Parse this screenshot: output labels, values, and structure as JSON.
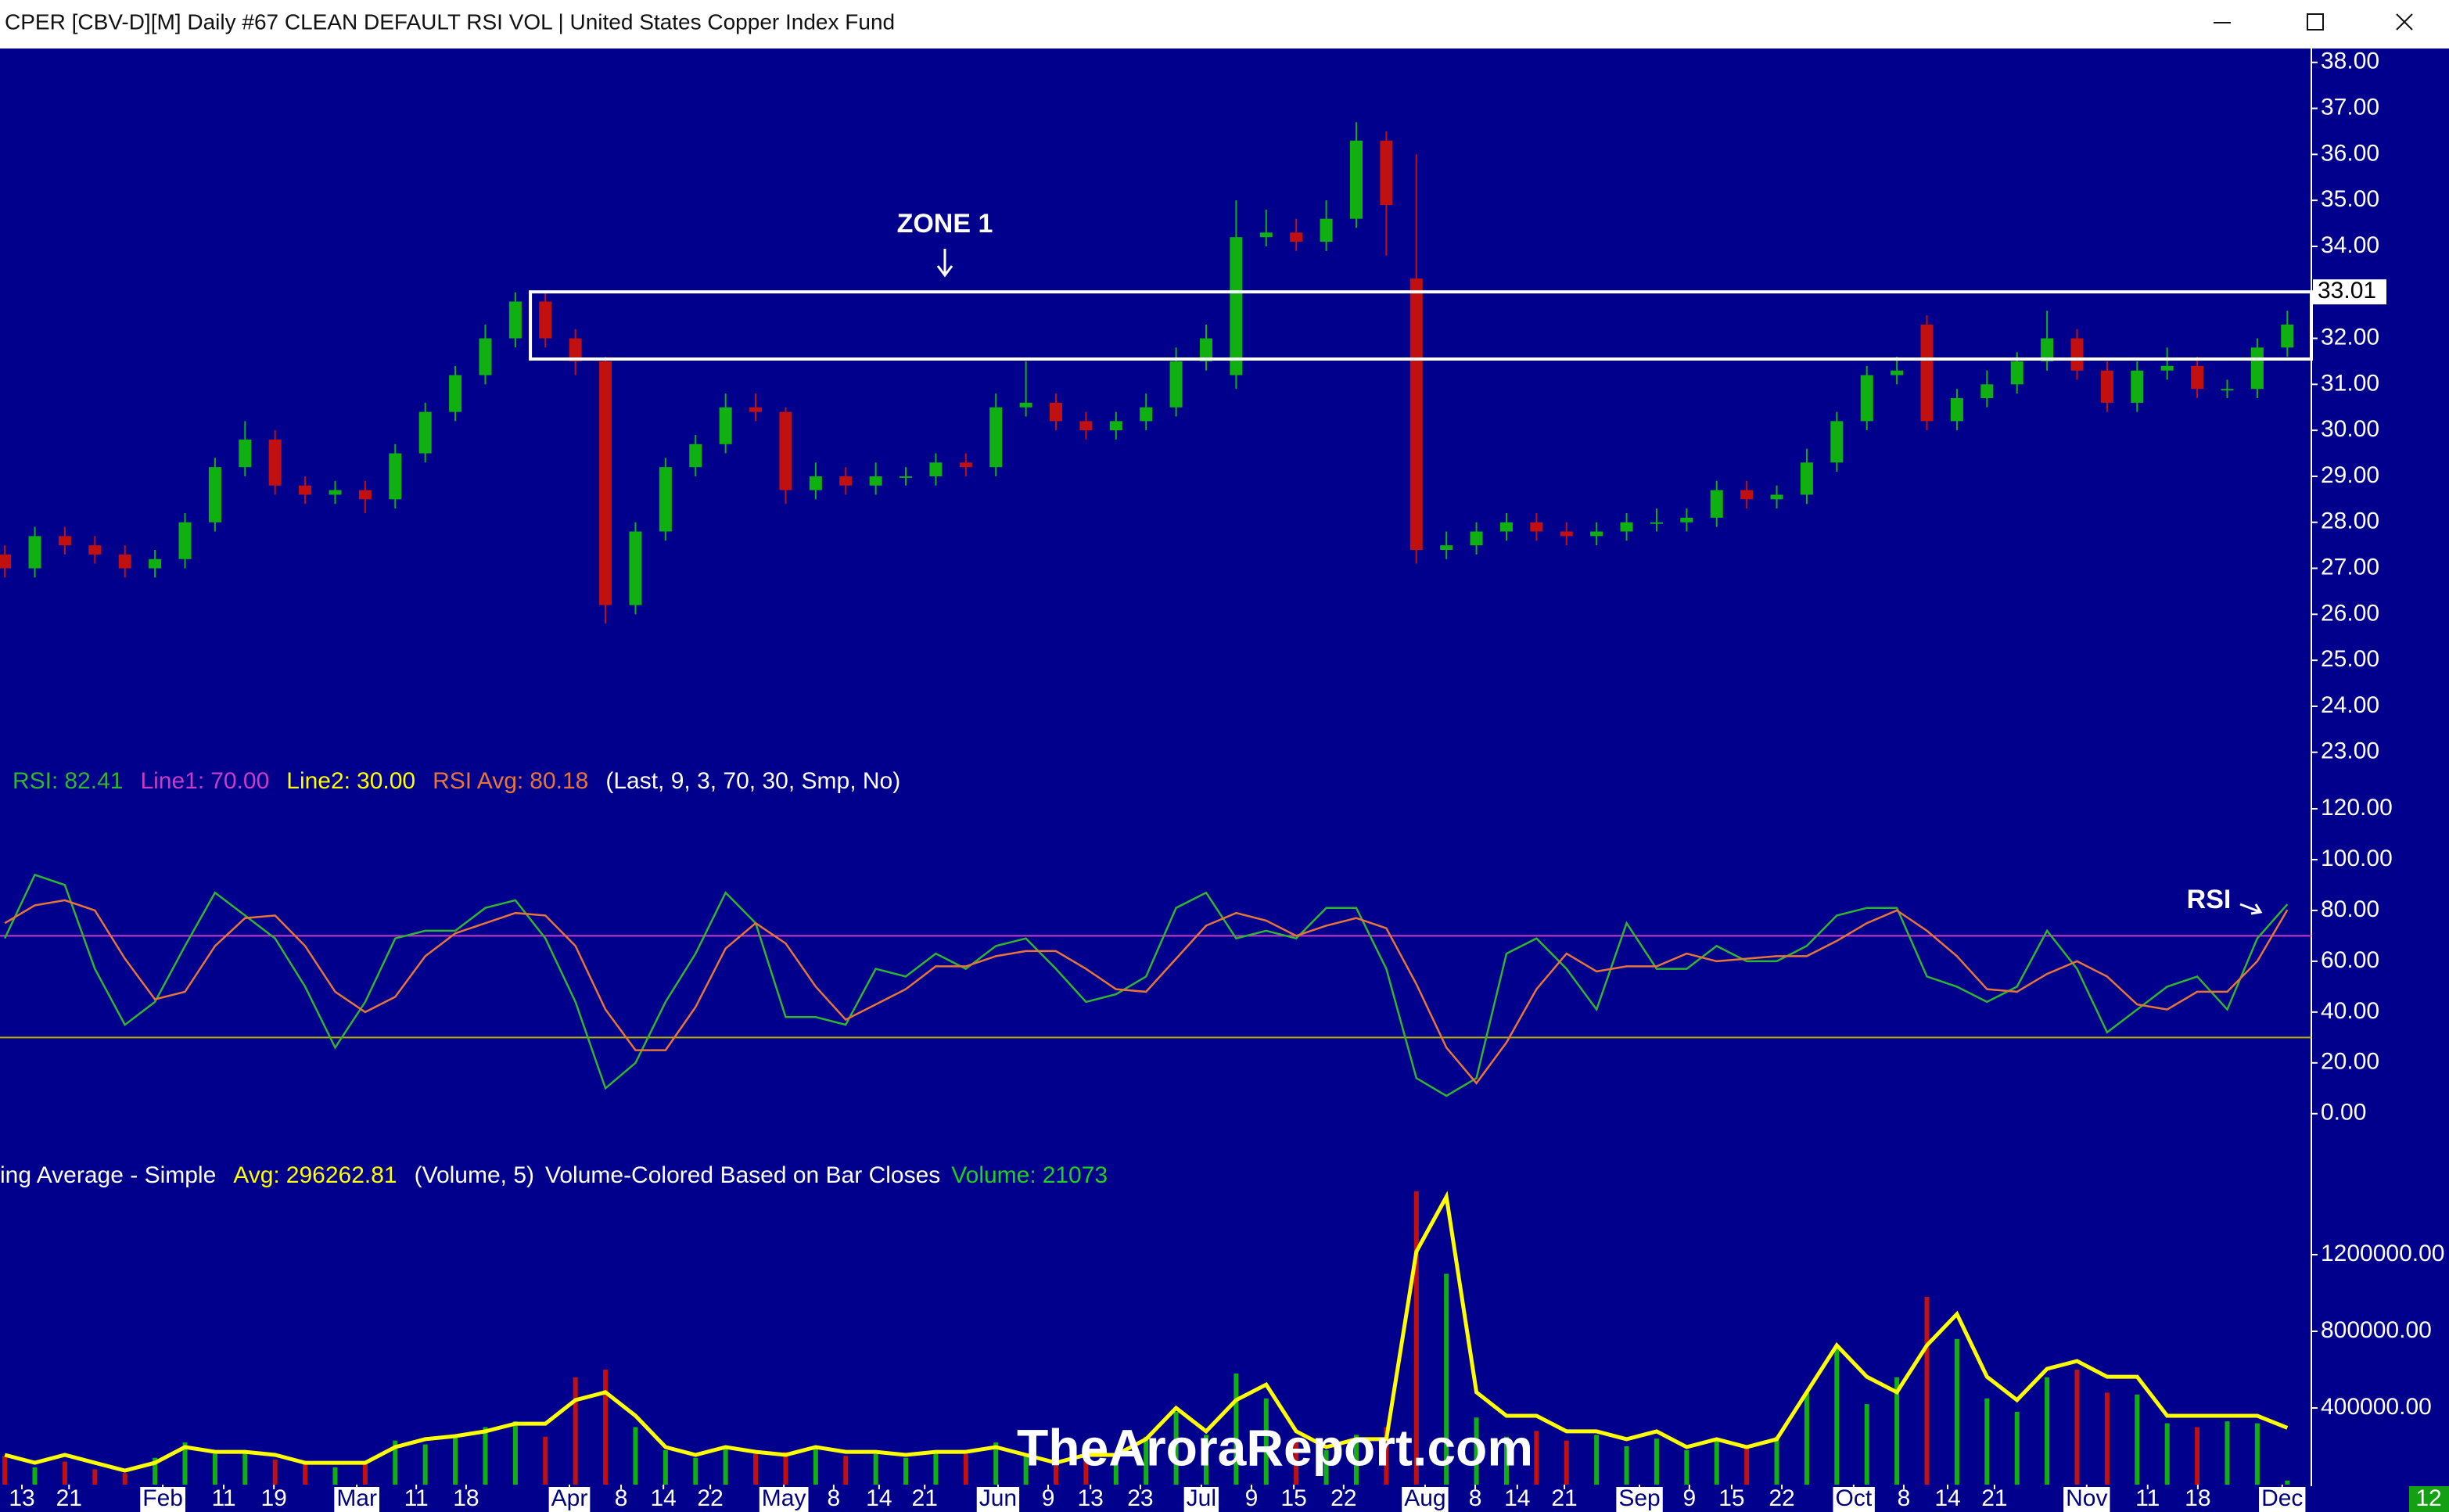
{
  "chart_data": [
    {
      "type": "candlestick",
      "title": "CPER [CBV-D][M]  Daily #67 CLEAN DEFAULT RSI VOL | United States Copper Index Fund",
      "up_color": "#10b010",
      "down_color": "#c01010",
      "open": [
        27.3,
        27.0,
        27.7,
        27.5,
        27.3,
        27.0,
        27.2,
        28.0,
        29.2,
        29.8,
        28.8,
        28.6,
        28.7,
        28.5,
        29.5,
        30.4,
        31.2,
        32.0,
        32.8,
        32.0,
        31.5,
        26.2,
        27.8,
        29.2,
        29.7,
        30.5,
        30.4,
        28.7,
        29.0,
        28.8,
        29.0,
        29.0,
        29.3,
        29.2,
        30.5,
        30.6,
        30.2,
        30.0,
        30.2,
        30.5,
        31.5,
        31.2,
        34.2,
        34.3,
        34.1,
        34.6,
        36.3,
        33.3,
        27.4,
        27.5,
        27.8,
        28.0,
        27.8,
        27.7,
        27.8,
        28.0,
        28.0,
        28.1,
        28.7,
        28.5,
        28.6,
        29.3,
        30.2,
        31.2,
        32.3,
        30.2,
        30.7,
        31.0,
        31.5,
        32.0,
        31.3,
        30.6,
        31.3,
        31.4,
        30.9,
        30.9,
        31.8
      ],
      "high": [
        27.5,
        27.9,
        27.9,
        27.7,
        27.5,
        27.4,
        28.2,
        29.4,
        30.2,
        30.0,
        29.0,
        28.9,
        28.9,
        29.7,
        30.6,
        31.4,
        32.3,
        33.0,
        33.0,
        32.2,
        31.6,
        28.0,
        29.4,
        29.9,
        30.8,
        30.8,
        30.5,
        29.3,
        29.2,
        29.3,
        29.2,
        29.5,
        29.5,
        30.8,
        31.5,
        30.8,
        30.4,
        30.4,
        30.8,
        31.8,
        32.3,
        35.0,
        34.8,
        34.6,
        35.0,
        36.7,
        36.5,
        36.0,
        27.8,
        28.0,
        28.2,
        28.2,
        28.0,
        28.0,
        28.2,
        28.3,
        28.3,
        28.9,
        28.9,
        28.8,
        29.6,
        30.4,
        31.4,
        31.6,
        32.5,
        30.9,
        31.3,
        31.7,
        32.6,
        32.2,
        31.5,
        31.5,
        31.8,
        31.6,
        31.1,
        32.0,
        32.6
      ],
      "low": [
        26.8,
        26.8,
        27.3,
        27.1,
        26.8,
        26.8,
        27.0,
        27.8,
        29.0,
        28.6,
        28.4,
        28.4,
        28.2,
        28.3,
        29.3,
        30.2,
        31.0,
        31.8,
        31.8,
        31.2,
        25.8,
        26.0,
        27.6,
        29.0,
        29.5,
        30.2,
        28.4,
        28.5,
        28.6,
        28.6,
        28.8,
        28.8,
        29.0,
        29.0,
        30.3,
        30.0,
        29.8,
        29.8,
        30.0,
        30.3,
        31.3,
        30.9,
        34.0,
        33.9,
        33.9,
        34.4,
        33.8,
        27.1,
        27.2,
        27.3,
        27.6,
        27.6,
        27.5,
        27.5,
        27.6,
        27.8,
        27.8,
        27.9,
        28.3,
        28.3,
        28.4,
        29.1,
        30.0,
        31.0,
        30.0,
        30.0,
        30.5,
        30.8,
        31.3,
        31.1,
        30.4,
        30.4,
        31.1,
        30.7,
        30.7,
        30.7,
        31.6
      ],
      "close": [
        27.0,
        27.7,
        27.5,
        27.3,
        27.0,
        27.2,
        28.0,
        29.2,
        29.8,
        28.8,
        28.6,
        28.7,
        28.5,
        29.5,
        30.4,
        31.2,
        32.0,
        32.8,
        32.0,
        31.5,
        26.2,
        27.8,
        29.2,
        29.7,
        30.5,
        30.4,
        28.7,
        29.0,
        28.8,
        29.0,
        29.0,
        29.3,
        29.2,
        30.5,
        30.6,
        30.2,
        30.0,
        30.2,
        30.5,
        31.5,
        32.0,
        34.2,
        34.3,
        34.1,
        34.6,
        36.3,
        34.9,
        27.4,
        27.5,
        27.8,
        28.0,
        27.8,
        27.7,
        27.8,
        28.0,
        28.0,
        28.1,
        28.7,
        28.5,
        28.6,
        29.3,
        30.2,
        31.2,
        31.3,
        30.2,
        30.7,
        31.0,
        31.5,
        32.0,
        31.3,
        30.6,
        31.3,
        31.4,
        30.9,
        30.9,
        31.8,
        32.3
      ],
      "xlim": [
        -0.16,
        76.8
      ],
      "ylim": [
        22.4,
        38.2
      ],
      "yticks": [
        {
          "value": 23,
          "label": "23.00"
        },
        {
          "value": 24,
          "label": "24.00"
        },
        {
          "value": 25,
          "label": "25.00"
        },
        {
          "value": 26,
          "label": "26.00"
        },
        {
          "value": 27,
          "label": "27.00"
        },
        {
          "value": 28,
          "label": "28.00"
        },
        {
          "value": 29,
          "label": "29.00"
        },
        {
          "value": 30,
          "label": "30.00"
        },
        {
          "value": 31,
          "label": "31.00"
        },
        {
          "value": 32,
          "label": "32.00"
        },
        {
          "value": 33,
          "label": "33.00"
        },
        {
          "value": 34,
          "label": "34.00"
        },
        {
          "value": 35,
          "label": "35.00"
        },
        {
          "value": 36,
          "label": "36.00"
        },
        {
          "value": 37,
          "label": "37.00"
        },
        {
          "value": 38,
          "label": "38.00"
        }
      ],
      "zone": {
        "label": "ZONE 1",
        "top": 33.01,
        "bottom": 31.55,
        "x_start": 17.5
      }
    },
    {
      "type": "line",
      "series": [
        {
          "name": "RSI:",
          "color": "#2fb52f",
          "values": [
            69,
            94,
            90,
            57,
            35,
            44,
            66,
            87,
            78,
            69,
            50,
            26,
            44,
            69,
            72,
            72,
            81,
            84,
            69,
            44,
            10,
            20,
            44,
            63,
            87,
            75,
            38,
            38,
            35,
            57,
            54,
            63,
            57,
            66,
            69,
            57,
            44,
            47,
            54,
            81,
            87,
            69,
            72,
            69,
            81,
            81,
            57,
            14,
            7,
            14,
            63,
            69,
            57,
            41,
            75,
            57,
            57,
            66,
            60,
            60,
            66,
            78,
            81,
            81,
            54,
            50,
            44,
            50,
            72,
            57,
            32,
            41,
            50,
            54,
            41,
            69,
            82.41
          ]
        },
        {
          "name": "RSI Avg:",
          "color": "#e8743a",
          "values": [
            75,
            82,
            84,
            80,
            61,
            45,
            48,
            66,
            77,
            78,
            66,
            48,
            40,
            46,
            62,
            71,
            75,
            79,
            78,
            66,
            41,
            25,
            25,
            42,
            65,
            75,
            67,
            50,
            37,
            43,
            49,
            58,
            58,
            62,
            64,
            64,
            57,
            49,
            48,
            61,
            74,
            79,
            76,
            70,
            74,
            77,
            73,
            51,
            26,
            12,
            28,
            49,
            63,
            56,
            58,
            58,
            63,
            60,
            61,
            62,
            62,
            68,
            75,
            80,
            72,
            62,
            49,
            48,
            55,
            60,
            54,
            43,
            41,
            48,
            48,
            60,
            80.18
          ]
        }
      ],
      "hlines": [
        {
          "name": "Line1:",
          "color": "#c83cc8",
          "value": 70,
          "label": "70.00"
        },
        {
          "name": "Line2:",
          "color": "#b4b400",
          "value": 30,
          "label": "30.00"
        }
      ],
      "params": "(Last, 9, 3, 70, 30, Smp, No)",
      "annotation": "RSI",
      "ylim": [
        -17,
        124
      ],
      "yticks": [
        {
          "value": 0,
          "label": "0.00"
        },
        {
          "value": 20,
          "label": "20.00"
        },
        {
          "value": 40,
          "label": "40.00"
        },
        {
          "value": 60,
          "label": "60.00"
        },
        {
          "value": 80,
          "label": "80.00"
        },
        {
          "value": 100,
          "label": "100.00"
        },
        {
          "value": 120,
          "label": "120.00"
        }
      ]
    },
    {
      "type": "bar",
      "header": "ing Average - Simple",
      "series": [
        {
          "name": "Volume:",
          "color": "#20d020",
          "up_color": "#10b010",
          "down_color": "#c01010",
          "values": [
            150000,
            90000,
            120000,
            80000,
            60000,
            140000,
            220000,
            160000,
            180000,
            130000,
            110000,
            90000,
            120000,
            230000,
            210000,
            260000,
            300000,
            330000,
            250000,
            560000,
            600000,
            300000,
            180000,
            140000,
            200000,
            160000,
            170000,
            190000,
            150000,
            160000,
            140000,
            180000,
            160000,
            220000,
            150000,
            100000,
            130000,
            160000,
            250000,
            380000,
            260000,
            580000,
            450000,
            240000,
            180000,
            260000,
            300000,
            1530000,
            1100000,
            350000,
            250000,
            280000,
            230000,
            260000,
            200000,
            240000,
            180000,
            230000,
            190000,
            250000,
            480000,
            720000,
            420000,
            560000,
            980000,
            760000,
            450000,
            380000,
            560000,
            600000,
            480000,
            470000,
            320000,
            300000,
            330000,
            320000,
            21073
          ]
        }
      ],
      "average": {
        "name": "Avg:",
        "color": "#ffff00",
        "values": [
          155000,
          114000,
          155000,
          114000,
          73000,
          114000,
          196000,
          171000,
          171000,
          155000,
          114000,
          114000,
          114000,
          196000,
          237000,
          253000,
          278000,
          318000,
          318000,
          441000,
          482000,
          359000,
          196000,
          155000,
          196000,
          171000,
          155000,
          196000,
          171000,
          171000,
          155000,
          171000,
          171000,
          196000,
          155000,
          114000,
          155000,
          155000,
          237000,
          400000,
          278000,
          441000,
          522000,
          278000,
          196000,
          237000,
          237000,
          1216000,
          1502000,
          482000,
          359000,
          359000,
          278000,
          278000,
          237000,
          278000,
          196000,
          237000,
          196000,
          237000,
          482000,
          727000,
          563000,
          482000,
          727000,
          890000,
          563000,
          441000,
          604000,
          645000,
          563000,
          563000,
          359000,
          359000,
          359000,
          359000,
          296262.81
        ]
      },
      "params": "(Volume, 5)",
      "note": "Volume-Colored Based on Bar Closes",
      "ylim": [
        0,
        1706000
      ],
      "yticks": [
        {
          "value": 400000,
          "label": "400000.00"
        },
        {
          "value": 800000,
          "label": "800000.00"
        },
        {
          "value": 1200000,
          "label": "1200000.00"
        }
      ],
      "xticks": [
        {
          "value": 0.57,
          "label": "13"
        },
        {
          "value": 2.14,
          "label": "21"
        },
        {
          "value": 5.26,
          "label": "Feb"
        },
        {
          "value": 7.29,
          "label": "11"
        },
        {
          "value": 8.96,
          "label": "19"
        },
        {
          "value": 11.72,
          "label": "Mar"
        },
        {
          "value": 13.7,
          "label": "11"
        },
        {
          "value": 15.36,
          "label": "18"
        },
        {
          "value": 18.8,
          "label": "Apr"
        },
        {
          "value": 20.52,
          "label": "8"
        },
        {
          "value": 21.93,
          "label": "14"
        },
        {
          "value": 23.49,
          "label": "22"
        },
        {
          "value": 25.94,
          "label": "May"
        },
        {
          "value": 27.6,
          "label": "8"
        },
        {
          "value": 29.11,
          "label": "14"
        },
        {
          "value": 30.63,
          "label": "21"
        },
        {
          "value": 33.07,
          "label": "Jun"
        },
        {
          "value": 34.74,
          "label": "9"
        },
        {
          "value": 36.15,
          "label": "13"
        },
        {
          "value": 37.81,
          "label": "23"
        },
        {
          "value": 39.84,
          "label": "Jul"
        },
        {
          "value": 41.51,
          "label": "9"
        },
        {
          "value": 42.92,
          "label": "15"
        },
        {
          "value": 44.58,
          "label": "22"
        },
        {
          "value": 47.29,
          "label": "Aug"
        },
        {
          "value": 48.96,
          "label": "8"
        },
        {
          "value": 50.36,
          "label": "14"
        },
        {
          "value": 51.93,
          "label": "21"
        },
        {
          "value": 54.43,
          "label": "Sep"
        },
        {
          "value": 56.09,
          "label": "9"
        },
        {
          "value": 57.5,
          "label": "15"
        },
        {
          "value": 59.17,
          "label": "22"
        },
        {
          "value": 61.56,
          "label": "Oct"
        },
        {
          "value": 63.23,
          "label": "8"
        },
        {
          "value": 64.69,
          "label": "14"
        },
        {
          "value": 66.25,
          "label": "21"
        },
        {
          "value": 69.32,
          "label": "Nov"
        },
        {
          "value": 71.35,
          "label": "11"
        },
        {
          "value": 73.02,
          "label": "18"
        },
        {
          "value": 75.83,
          "label": "Dec"
        }
      ],
      "current_label": "12",
      "watermark": "TheAroraReport.com"
    }
  ]
}
